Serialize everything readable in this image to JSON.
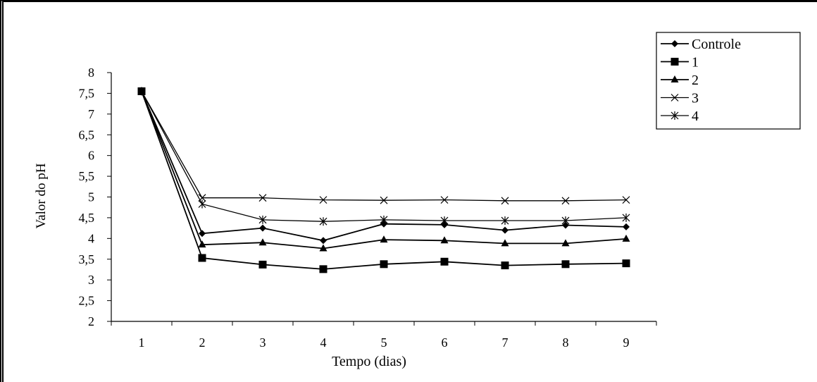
{
  "chart_data": {
    "type": "line",
    "xlabel": "Tempo (dias)",
    "ylabel": "Valor do pH",
    "x": [
      "1",
      "2",
      "3",
      "4",
      "5",
      "6",
      "7",
      "8",
      "9"
    ],
    "ylim": [
      2,
      8
    ],
    "yticks": [
      "2",
      "2,5",
      "3",
      "3,5",
      "4",
      "4,5",
      "5",
      "5,5",
      "6",
      "6,5",
      "7",
      "7,5",
      "8"
    ],
    "grid": false,
    "legend_position": "top-right",
    "series": [
      {
        "name": "Controle",
        "marker": "diamond",
        "values": [
          7.55,
          4.12,
          4.25,
          3.95,
          4.35,
          4.33,
          4.2,
          4.32,
          4.28
        ]
      },
      {
        "name": "1",
        "marker": "square",
        "values": [
          7.55,
          3.53,
          3.37,
          3.26,
          3.38,
          3.44,
          3.35,
          3.38,
          3.4
        ]
      },
      {
        "name": "2",
        "marker": "triangle",
        "values": [
          7.55,
          3.85,
          3.9,
          3.76,
          3.97,
          3.95,
          3.88,
          3.88,
          3.99
        ]
      },
      {
        "name": "3",
        "marker": "x",
        "values": [
          7.55,
          4.98,
          4.98,
          4.93,
          4.92,
          4.93,
          4.91,
          4.91,
          4.93
        ]
      },
      {
        "name": "4",
        "marker": "star",
        "values": [
          7.55,
          4.83,
          4.45,
          4.41,
          4.45,
          4.43,
          4.43,
          4.43,
          4.5
        ]
      }
    ]
  }
}
